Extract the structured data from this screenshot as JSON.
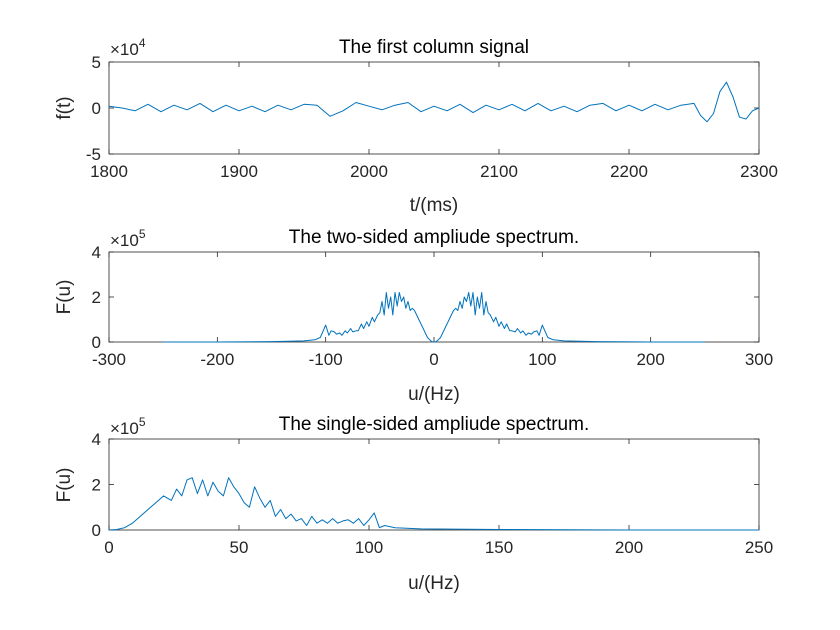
{
  "colors": {
    "line": "#0072BD",
    "axis": "#262626",
    "background": "#ffffff"
  },
  "chart_data": [
    {
      "type": "line",
      "title": "The first column signal",
      "xlabel": "t/(ms)",
      "ylabel": "f(t)",
      "xlim": [
        1800,
        2300
      ],
      "ylim": [
        -5,
        5
      ],
      "y_multiplier": {
        "base": "×10",
        "exponent": "4"
      },
      "xticks": [
        1800,
        1900,
        2000,
        2100,
        2200,
        2300
      ],
      "yticks": [
        -5,
        0,
        5
      ],
      "grid": false,
      "series": [
        {
          "x": [
            1800,
            1810,
            1820,
            1830,
            1840,
            1850,
            1860,
            1870,
            1880,
            1890,
            1900,
            1910,
            1920,
            1930,
            1940,
            1950,
            1960,
            1970,
            1980,
            1990,
            2000,
            2010,
            2020,
            2030,
            2040,
            2050,
            2060,
            2070,
            2080,
            2090,
            2100,
            2110,
            2120,
            2130,
            2140,
            2150,
            2160,
            2170,
            2180,
            2190,
            2200,
            2210,
            2220,
            2230,
            2240,
            2250,
            2255,
            2260,
            2265,
            2270,
            2275,
            2280,
            2285,
            2290,
            2295,
            2300
          ],
          "y": [
            0.2,
            0.0,
            -0.3,
            0.4,
            -0.4,
            0.3,
            -0.2,
            0.5,
            -0.4,
            0.3,
            -0.3,
            0.2,
            -0.4,
            0.3,
            -0.2,
            0.4,
            0.3,
            -0.9,
            -0.3,
            0.6,
            0.2,
            -0.2,
            0.3,
            0.6,
            -0.4,
            0.2,
            -0.3,
            0.4,
            -0.5,
            0.3,
            -0.2,
            0.4,
            -0.3,
            0.5,
            -0.3,
            0.2,
            -0.4,
            0.3,
            0.5,
            -0.3,
            0.3,
            -0.3,
            0.4,
            -0.2,
            0.3,
            0.5,
            -0.8,
            -1.5,
            -0.6,
            1.8,
            2.8,
            1.2,
            -1.0,
            -1.2,
            -0.3,
            0.0
          ]
        }
      ]
    },
    {
      "type": "line",
      "title": "The two-sided ampliude spectrum.",
      "xlabel": "u/(Hz)",
      "ylabel": "F(u)",
      "xlim": [
        -300,
        300
      ],
      "ylim": [
        0,
        4
      ],
      "y_multiplier": {
        "base": "×10",
        "exponent": "5"
      },
      "xticks": [
        -300,
        -200,
        -100,
        0,
        100,
        200,
        300
      ],
      "yticks": [
        0,
        2,
        4
      ],
      "grid": false,
      "series": [
        {
          "x": [
            -250,
            -200,
            -150,
            -120,
            -110,
            -105,
            -100,
            -97,
            -95,
            -92,
            -90,
            -87,
            -85,
            -82,
            -80,
            -77,
            -75,
            -72,
            -70,
            -67,
            -65,
            -62,
            -60,
            -57,
            -55,
            -52,
            -50,
            -48,
            -46,
            -44,
            -42,
            -40,
            -38,
            -36,
            -34,
            -32,
            -30,
            -28,
            -26,
            -24,
            -22,
            -20,
            -18,
            -16,
            -14,
            -12,
            -10,
            -8,
            -6,
            -4,
            -2,
            0,
            2,
            4,
            6,
            8,
            10,
            12,
            14,
            16,
            18,
            20,
            22,
            24,
            26,
            28,
            30,
            32,
            34,
            36,
            38,
            40,
            42,
            44,
            46,
            48,
            50,
            52,
            55,
            57,
            60,
            62,
            65,
            67,
            70,
            72,
            75,
            77,
            80,
            82,
            85,
            87,
            90,
            92,
            95,
            97,
            100,
            105,
            110,
            120,
            150,
            200,
            250
          ],
          "y": [
            0,
            0,
            0.02,
            0.05,
            0.1,
            0.2,
            0.75,
            0.3,
            0.5,
            0.45,
            0.35,
            0.4,
            0.3,
            0.5,
            0.4,
            0.6,
            0.45,
            0.5,
            0.5,
            0.8,
            0.6,
            0.9,
            0.7,
            1.1,
            0.9,
            1.2,
            1.3,
            1.8,
            1.2,
            2.2,
            1.5,
            2.0,
            1.2,
            2.2,
            1.6,
            2.2,
            1.8,
            2.0,
            1.5,
            1.8,
            1.4,
            1.5,
            1.4,
            1.2,
            1.0,
            0.8,
            0.6,
            0.4,
            0.2,
            0.1,
            0.02,
            0,
            0.02,
            0.1,
            0.2,
            0.4,
            0.6,
            0.8,
            1.0,
            1.2,
            1.4,
            1.5,
            1.4,
            1.8,
            1.5,
            2.0,
            1.8,
            2.2,
            1.6,
            2.2,
            1.2,
            2.0,
            1.5,
            2.2,
            1.2,
            1.8,
            1.3,
            1.2,
            0.9,
            1.1,
            0.7,
            0.9,
            0.6,
            0.8,
            0.5,
            0.5,
            0.45,
            0.6,
            0.4,
            0.5,
            0.3,
            0.4,
            0.35,
            0.45,
            0.5,
            0.3,
            0.75,
            0.2,
            0.1,
            0.05,
            0.02,
            0,
            0
          ]
        }
      ]
    },
    {
      "type": "line",
      "title": "The single-sided ampliude spectrum.",
      "xlabel": "u/(Hz)",
      "ylabel": "F(u)",
      "xlim": [
        0,
        250
      ],
      "ylim": [
        0,
        4
      ],
      "y_multiplier": {
        "base": "×10",
        "exponent": "5"
      },
      "xticks": [
        0,
        50,
        100,
        150,
        200,
        250
      ],
      "yticks": [
        0,
        2,
        4
      ],
      "grid": false,
      "series": [
        {
          "x": [
            0,
            3,
            6,
            9,
            12,
            15,
            18,
            21,
            24,
            26,
            28,
            30,
            32,
            34,
            36,
            38,
            40,
            42,
            44,
            46,
            48,
            50,
            52,
            54,
            56,
            58,
            60,
            62,
            64,
            66,
            68,
            70,
            72,
            74,
            76,
            78,
            80,
            82,
            84,
            86,
            88,
            90,
            92,
            94,
            96,
            98,
            100,
            102,
            104,
            106,
            110,
            120,
            150,
            200,
            250
          ],
          "y": [
            0,
            0.02,
            0.1,
            0.3,
            0.6,
            0.9,
            1.2,
            1.5,
            1.3,
            1.8,
            1.5,
            2.2,
            2.3,
            1.6,
            2.2,
            1.5,
            2.1,
            1.7,
            1.5,
            2.3,
            1.9,
            1.6,
            1.2,
            1.0,
            1.9,
            1.4,
            1.0,
            1.3,
            0.6,
            0.9,
            0.5,
            0.7,
            0.4,
            0.5,
            0.2,
            0.6,
            0.3,
            0.45,
            0.3,
            0.5,
            0.3,
            0.4,
            0.45,
            0.3,
            0.5,
            0.2,
            0.45,
            0.75,
            0.1,
            0.2,
            0.1,
            0.05,
            0.02,
            0.0,
            0.0
          ]
        }
      ]
    }
  ]
}
